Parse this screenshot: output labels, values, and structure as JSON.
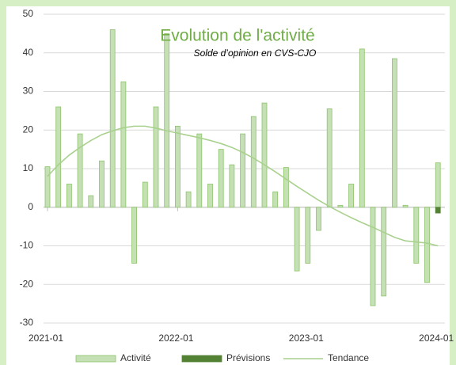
{
  "chart_data": {
    "type": "bar",
    "title": "Evolution de l'activité",
    "subtitle": "Solde d’opinion en CVS-CJO",
    "categories": [
      "2021-01",
      null,
      null,
      null,
      null,
      null,
      null,
      null,
      null,
      null,
      null,
      null,
      "2022-01",
      null,
      null,
      null,
      null,
      null,
      null,
      null,
      null,
      null,
      null,
      null,
      "2023-01",
      null,
      null,
      null,
      null,
      null,
      null,
      null,
      null,
      null,
      null,
      null,
      "2024-01"
    ],
    "series": [
      {
        "name": "Activité",
        "type": "bar",
        "color": "#c5e0b4",
        "stroke": "#8cc46a",
        "values": [
          10.5,
          26,
          6,
          19,
          3,
          12,
          46,
          32.5,
          -14.5,
          6.5,
          26,
          45,
          21,
          4,
          19,
          6,
          15,
          11,
          19,
          23.5,
          27,
          4,
          10.3,
          -16.5,
          -14.5,
          -6,
          25.5,
          0.5,
          6,
          41,
          -25.5,
          -23,
          38.5,
          0.5,
          -14.5,
          -19.5,
          11.5
        ]
      },
      {
        "name": "Prévisions",
        "type": "bar",
        "color": "#548235",
        "stroke": "#548235",
        "values": [
          null,
          null,
          null,
          null,
          null,
          null,
          null,
          null,
          null,
          null,
          null,
          null,
          null,
          null,
          null,
          null,
          null,
          null,
          null,
          null,
          null,
          null,
          null,
          null,
          null,
          null,
          null,
          null,
          null,
          null,
          null,
          null,
          null,
          null,
          null,
          null,
          -1.5
        ]
      },
      {
        "name": "Tendance",
        "type": "line",
        "color": "#a9d18e",
        "values": [
          8,
          11,
          13.5,
          15.5,
          17.3,
          18.8,
          19.8,
          20.6,
          21,
          21,
          20.5,
          19.8,
          19.2,
          18.6,
          18,
          17.3,
          16.5,
          15.5,
          14.2,
          12.7,
          11,
          9.2,
          7.3,
          5.4,
          3.6,
          1.8,
          0.2,
          -1.3,
          -2.7,
          -4,
          -5.2,
          -6.5,
          -7.8,
          -8.7,
          -9,
          -9.3,
          -10
        ]
      }
    ],
    "ylim": [
      -30,
      50
    ],
    "yticks": [
      -30,
      -20,
      -10,
      0,
      10,
      20,
      30,
      40,
      50
    ],
    "grid": true,
    "legend": "bottom"
  }
}
